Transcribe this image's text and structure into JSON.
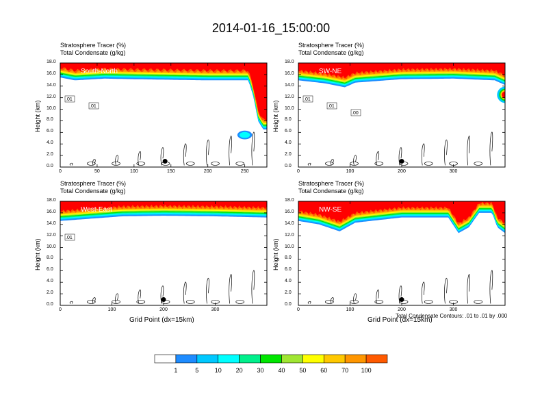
{
  "page": {
    "title": "2014-01-16_15:00:00"
  },
  "shared": {
    "line1": "Stratosphere Tracer   (%)",
    "line2": "Total Condensate   (g/kg)",
    "ylabel": "Height (km)",
    "xlabel": "Grid Point (dx=15km)",
    "contour_note": "Total Condensate Contours: .01 to .01 by .000"
  },
  "colors": {
    "levels": [
      "#ffffff",
      "#1e8cff",
      "#00c8ff",
      "#00ffff",
      "#00f08c",
      "#00e600",
      "#a0e632",
      "#ffff00",
      "#ffc800",
      "#ff9600",
      "#ff5a00",
      "#ff0000"
    ],
    "contour": "#000000"
  },
  "colorbar": {
    "labels": [
      "1",
      "5",
      "10",
      "20",
      "30",
      "40",
      "50",
      "60",
      "70",
      "100"
    ]
  },
  "chart_data": [
    {
      "type": "heatmap",
      "name": "South-North",
      "title": "South-North",
      "ylabel": "Height (km)",
      "xlim": [
        0,
        280
      ],
      "ylim": [
        0,
        18
      ],
      "xticks": [
        0,
        50,
        100,
        150,
        200,
        250
      ],
      "yticks": [
        0.0,
        2.0,
        4.0,
        6.0,
        8.0,
        10.0,
        12.0,
        14.0,
        16.0,
        18.0
      ],
      "tropopause_km": [
        [
          0,
          15.5
        ],
        [
          20,
          15.0
        ],
        [
          60,
          15.3
        ],
        [
          100,
          15.2
        ],
        [
          150,
          15.1
        ],
        [
          200,
          15.0
        ],
        [
          255,
          15.0
        ],
        [
          262,
          12.0
        ],
        [
          268,
          8.0
        ],
        [
          275,
          6.5
        ],
        [
          280,
          6.5
        ]
      ],
      "blue_blob": {
        "x": [
          240,
          260
        ],
        "y": [
          4.8,
          6.3
        ]
      },
      "contour_labels": [
        ".01",
        ".01"
      ],
      "marker_x": 142,
      "marker_y": 1.0
    },
    {
      "type": "heatmap",
      "name": "SW-NE",
      "title": "SW-NE",
      "ylabel": "Height (km)",
      "xlim": [
        0,
        400
      ],
      "ylim": [
        0,
        18
      ],
      "xticks": [
        0,
        100,
        200,
        300
      ],
      "yticks": [
        0.0,
        2.0,
        4.0,
        6.0,
        8.0,
        10.0,
        12.0,
        14.0,
        16.0,
        18.0
      ],
      "tropopause_km": [
        [
          0,
          15.0
        ],
        [
          50,
          14.5
        ],
        [
          90,
          13.8
        ],
        [
          110,
          14.6
        ],
        [
          200,
          15.2
        ],
        [
          300,
          15.3
        ],
        [
          380,
          15.0
        ],
        [
          400,
          14.2
        ]
      ],
      "red_blob": {
        "x": [
          385,
          400
        ],
        "y": [
          11.5,
          13.5
        ]
      },
      "contour_labels": [
        ".01",
        ".01",
        ".00"
      ],
      "marker_x": 200,
      "marker_y": 1.0
    },
    {
      "type": "heatmap",
      "name": "West-East",
      "title": "West-East",
      "ylabel": "Height (km)",
      "xlim": [
        0,
        400
      ],
      "ylim": [
        0,
        18
      ],
      "xticks": [
        0,
        100,
        200,
        300
      ],
      "yticks": [
        0.0,
        2.0,
        4.0,
        6.0,
        8.0,
        10.0,
        12.0,
        14.0,
        16.0,
        18.0
      ],
      "tropopause_km": [
        [
          0,
          14.6
        ],
        [
          60,
          15.0
        ],
        [
          120,
          15.4
        ],
        [
          200,
          15.5
        ],
        [
          300,
          15.4
        ],
        [
          400,
          15.2
        ]
      ],
      "contour_labels": [
        ".01"
      ],
      "marker_x": 200,
      "marker_y": 1.0,
      "xlabel": "Grid Point (dx=15km)"
    },
    {
      "type": "heatmap",
      "name": "NW-SE",
      "title": "NW-SE",
      "ylabel": "Height (km)",
      "xlim": [
        0,
        400
      ],
      "ylim": [
        0,
        18
      ],
      "xticks": [
        0,
        100,
        200,
        300
      ],
      "yticks": [
        0.0,
        2.0,
        4.0,
        6.0,
        8.0,
        10.0,
        12.0,
        14.0,
        16.0,
        18.0
      ],
      "tropopause_km": [
        [
          0,
          14.6
        ],
        [
          40,
          14.0
        ],
        [
          80,
          12.8
        ],
        [
          110,
          14.3
        ],
        [
          200,
          15.2
        ],
        [
          290,
          15.2
        ],
        [
          310,
          12.5
        ],
        [
          330,
          13.5
        ],
        [
          350,
          16.0
        ],
        [
          375,
          16.0
        ],
        [
          385,
          13.5
        ],
        [
          400,
          12.5
        ]
      ],
      "marker_x": 200,
      "marker_y": 1.0,
      "xlabel": "Grid Point (dx=15km)"
    }
  ]
}
